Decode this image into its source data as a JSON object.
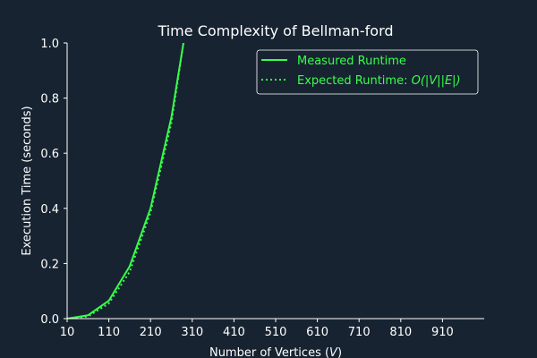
{
  "chart_data": {
    "type": "line",
    "title": "Time Complexity of Bellman-ford",
    "xlabel_main": "Number of Vertices (",
    "xlabel_var": "V",
    "xlabel_close": ")",
    "ylabel": "Execution Time (seconds)",
    "xlim": [
      10,
      1010
    ],
    "ylim": [
      0,
      1.0
    ],
    "x_ticks": [
      10,
      110,
      210,
      310,
      410,
      510,
      610,
      710,
      810,
      910
    ],
    "x_tick_labels": [
      "10",
      "110",
      "210",
      "310",
      "410",
      "510",
      "610",
      "710",
      "810",
      "910"
    ],
    "y_ticks": [
      0,
      0.2,
      0.4,
      0.6,
      0.8,
      1.0
    ],
    "y_tick_labels": [
      "0.0",
      "0.2",
      "0.4",
      "0.6",
      "0.8",
      "1.0"
    ],
    "legend_position": "top-right",
    "legend_entries": [
      {
        "label": "Measured Runtime"
      },
      {
        "label_prefix": "Expected Runtime: ",
        "label_math": "O(|V||E|)"
      }
    ],
    "series": [
      {
        "style": "solid",
        "color": "#39ff4a",
        "x": [
          10,
          60,
          110,
          160,
          210,
          260,
          290
        ],
        "y": [
          0.0,
          0.012,
          0.065,
          0.19,
          0.4,
          0.73,
          1.01
        ]
      },
      {
        "style": "dotted",
        "color": "#39ff4a",
        "x": [
          10,
          60,
          110,
          160,
          210,
          260,
          290
        ],
        "y": [
          0.0,
          0.008,
          0.055,
          0.17,
          0.385,
          0.71,
          1.01
        ]
      }
    ],
    "colors": {
      "background": "#172331",
      "axis": "#ffffff",
      "legend_border": "#ffffff",
      "legend_bg": "#172331",
      "series": "#39ff4a"
    }
  }
}
